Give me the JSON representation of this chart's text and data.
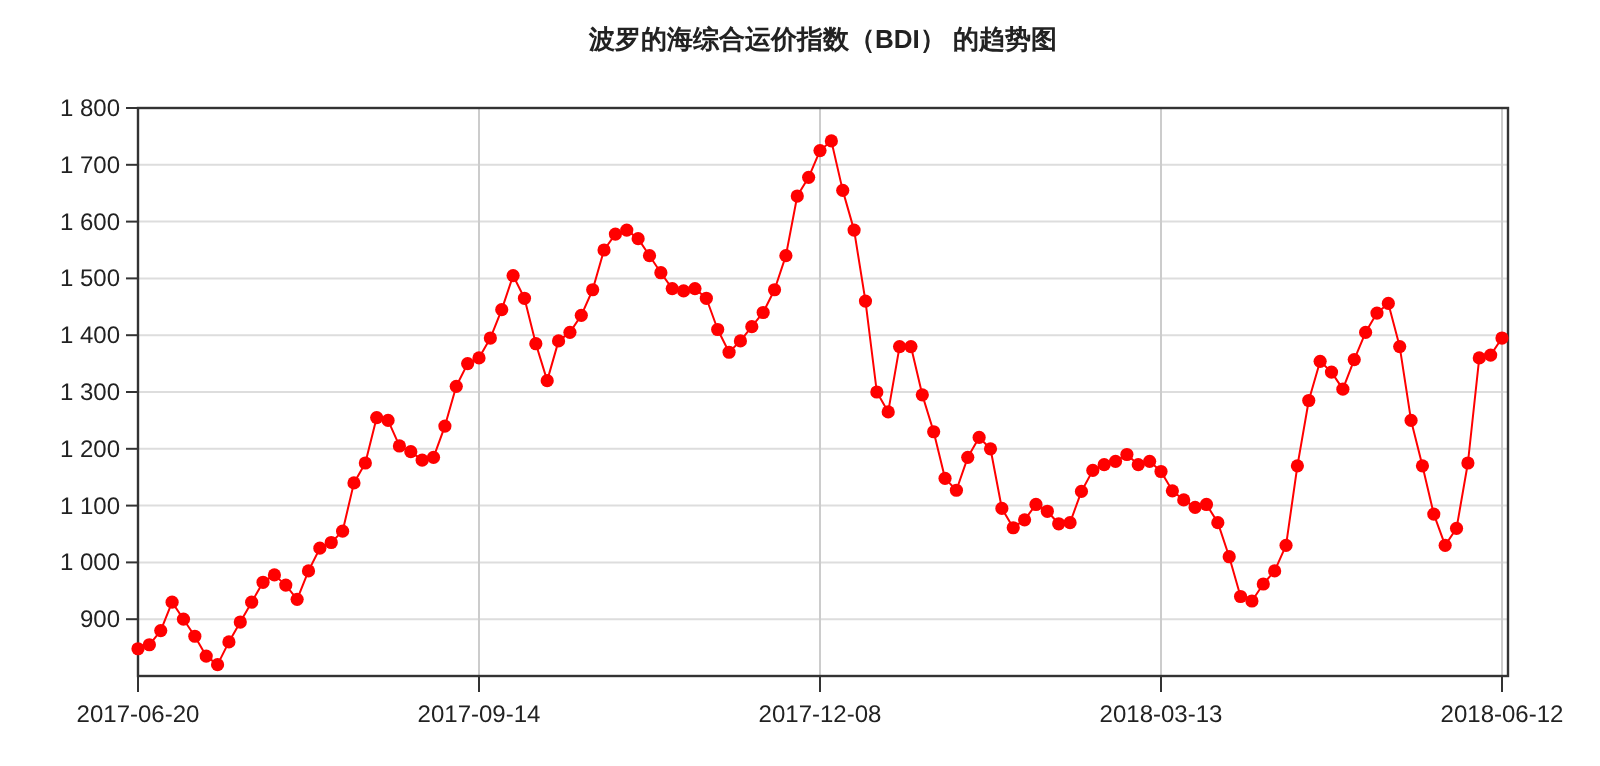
{
  "chart_data": {
    "type": "line",
    "title": "波罗的海综合运价指数（BDI） 的趋势图",
    "categories": [
      "2017-06-20",
      null,
      null,
      null,
      null,
      null,
      null,
      null,
      null,
      null,
      null,
      null,
      null,
      null,
      null,
      null,
      null,
      null,
      null,
      null,
      null,
      null,
      null,
      null,
      null,
      null,
      null,
      null,
      null,
      null,
      "2017-09-14",
      null,
      null,
      null,
      null,
      null,
      null,
      null,
      null,
      null,
      null,
      null,
      null,
      null,
      null,
      null,
      null,
      null,
      null,
      null,
      null,
      null,
      null,
      null,
      null,
      null,
      null,
      null,
      null,
      null,
      "2017-12-08",
      null,
      null,
      null,
      null,
      null,
      null,
      null,
      null,
      null,
      null,
      null,
      null,
      null,
      null,
      null,
      null,
      null,
      null,
      null,
      null,
      null,
      null,
      null,
      null,
      null,
      null,
      null,
      null,
      null,
      "2018-03-13",
      null,
      null,
      null,
      null,
      null,
      null,
      null,
      null,
      null,
      null,
      null,
      null,
      null,
      null,
      null,
      null,
      null,
      null,
      null,
      null,
      null,
      null,
      null,
      null,
      null,
      null,
      null,
      null,
      null,
      "2018-06-12"
    ],
    "series": [
      {
        "color": "#ff0000",
        "values": [
          848,
          855,
          880,
          930,
          900,
          870,
          835,
          820,
          860,
          895,
          930,
          965,
          978,
          960,
          935,
          985,
          1025,
          1035,
          1055,
          1140,
          1175,
          1255,
          1250,
          1205,
          1195,
          1180,
          1185,
          1240,
          1310,
          1350,
          1360,
          1395,
          1445,
          1505,
          1465,
          1385,
          1320,
          1390,
          1405,
          1435,
          1480,
          1550,
          1578,
          1585,
          1570,
          1540,
          1510,
          1482,
          1478,
          1482,
          1465,
          1410,
          1370,
          1390,
          1415,
          1440,
          1480,
          1540,
          1645,
          1678,
          1725,
          1742,
          1655,
          1585,
          1460,
          1300,
          1265,
          1380,
          1380,
          1295,
          1230,
          1148,
          1127,
          1185,
          1220,
          1200,
          1095,
          1061,
          1075,
          1102,
          1090,
          1068,
          1070,
          1125,
          1162,
          1172,
          1178,
          1190,
          1172,
          1178,
          1160,
          1126,
          1110,
          1097,
          1102,
          1070,
          1010,
          940,
          932,
          962,
          985,
          1030,
          1170,
          1285,
          1354,
          1335,
          1305,
          1357,
          1405,
          1439,
          1456,
          1380,
          1250,
          1170,
          1085,
          1030,
          1060,
          1175,
          1360,
          1365,
          1395
        ]
      }
    ],
    "ylim": [
      800,
      1800
    ],
    "yticks": [
      900,
      {
        "value": 1000,
        "label": "1 000"
      },
      {
        "value": 1100,
        "label": "1 100"
      },
      {
        "value": 1200,
        "label": "1 200"
      },
      {
        "value": 1300,
        "label": "1 300"
      },
      {
        "value": 1400,
        "label": "1 400"
      },
      {
        "value": 1500,
        "label": "1 500"
      },
      {
        "value": 1600,
        "label": "1 600"
      },
      {
        "value": 1700,
        "label": "1 700"
      },
      {
        "value": 1800,
        "label": "1 800"
      }
    ],
    "grid": true,
    "marker": "circle",
    "line_style": "solid"
  }
}
